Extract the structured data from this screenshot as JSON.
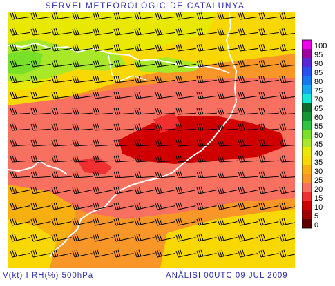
{
  "header": {
    "title": "SERVEI METEOROLÒGIC DE CATALUNYA"
  },
  "footer": {
    "variables": "V(kt) I RH(%) 500hPa",
    "analysis": "ANÀLISI 00UTC 09 JUL 2009"
  },
  "legend": {
    "levels": [
      {
        "label": "100",
        "color": "#ee00ee"
      },
      {
        "label": "95",
        "color": "#a000a0"
      },
      {
        "label": "90",
        "color": "#5a28d8"
      },
      {
        "label": "85",
        "color": "#2850f0"
      },
      {
        "label": "80",
        "color": "#1478f0"
      },
      {
        "label": "75",
        "color": "#14a8f0"
      },
      {
        "label": "70",
        "color": "#14e8d8"
      },
      {
        "label": "65",
        "color": "#0a6e28"
      },
      {
        "label": "60",
        "color": "#149632"
      },
      {
        "label": "55",
        "color": "#2cc440"
      },
      {
        "label": "50",
        "color": "#78e028"
      },
      {
        "label": "45",
        "color": "#a8e828"
      },
      {
        "label": "40",
        "color": "#e8e800"
      },
      {
        "label": "35",
        "color": "#f8d800"
      },
      {
        "label": "30",
        "color": "#f8b010"
      },
      {
        "label": "25",
        "color": "#f89628"
      },
      {
        "label": "20",
        "color": "#f87060"
      },
      {
        "label": "15",
        "color": "#f03030"
      },
      {
        "label": "10",
        "color": "#d00000"
      },
      {
        "label": "5",
        "color": "#a00000"
      },
      {
        "label": "0",
        "color": "#600000"
      }
    ]
  }
}
